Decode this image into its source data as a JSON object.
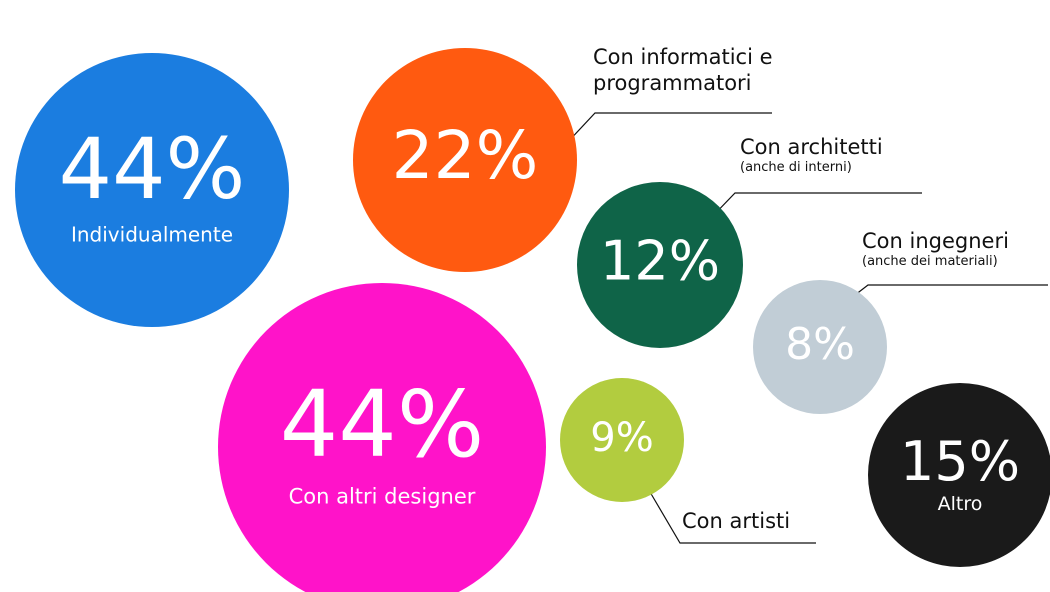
{
  "chart_data": {
    "type": "bubble",
    "categories": [
      "Individualmente",
      "Con altri designer",
      "Con informatici e programmatori",
      "Con architetti",
      "Con ingegneri",
      "Con artisti",
      "Altro"
    ],
    "notes": [
      null,
      null,
      null,
      "(anche di interni)",
      "(anche dei materiali)",
      null,
      null
    ],
    "values": [
      44,
      44,
      22,
      12,
      8,
      9,
      15
    ],
    "value_labels": [
      "44%",
      "44%",
      "22%",
      "12%",
      "8%",
      "9%",
      "15%"
    ],
    "colors": [
      "#1b7de0",
      "#ff13c9",
      "#ff5a10",
      "#0f6448",
      "#c1cdd6",
      "#b2cc3f",
      "#1a1a1a"
    ]
  }
}
